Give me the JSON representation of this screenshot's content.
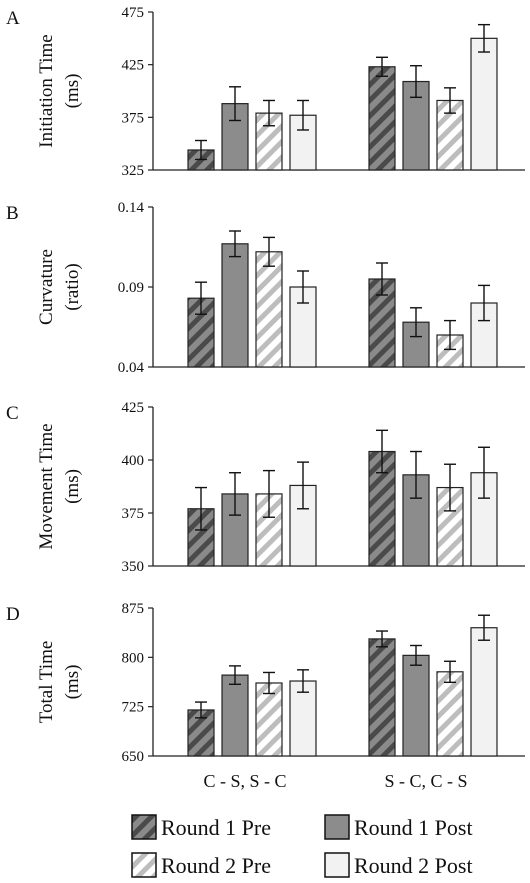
{
  "chart_data": {
    "type": "bar",
    "categories": [
      "C - S, S - C",
      "S - C, C - S"
    ],
    "series_names": [
      "Round 1 Pre",
      "Round 1 Post",
      "Round 2 Pre",
      "Round 2 Post"
    ],
    "series_colors": [
      "#7a7a7a",
      "#8c8c8c",
      "#d9d9d9",
      "#f2f2f2"
    ],
    "panels": [
      {
        "letter": "A",
        "ylabel_line1": "Initiation Time",
        "ylabel_line2": "(ms)",
        "ylim": [
          325,
          475
        ],
        "ticks": [
          "475",
          "425",
          "375",
          "325"
        ],
        "tick_values": [
          475,
          425,
          375,
          325
        ],
        "series": [
          {
            "name": "Round 1 Pre",
            "values": [
              344,
              423
            ],
            "errors": [
              9,
              9
            ]
          },
          {
            "name": "Round 1 Post",
            "values": [
              388,
              409
            ],
            "errors": [
              16,
              15
            ]
          },
          {
            "name": "Round 2 Pre",
            "values": [
              379,
              391
            ],
            "errors": [
              12,
              12
            ]
          },
          {
            "name": "Round 2 Post",
            "values": [
              377,
              450
            ],
            "errors": [
              14,
              13
            ]
          }
        ]
      },
      {
        "letter": "B",
        "ylabel_line1": "Curvature",
        "ylabel_line2": "(ratio)",
        "ylim": [
          0.04,
          0.14
        ],
        "ticks": [
          "0.14",
          "0.09",
          "0.04"
        ],
        "tick_values": [
          0.14,
          0.09,
          0.04
        ],
        "series": [
          {
            "name": "Round 1 Pre",
            "values": [
              0.083,
              0.095
            ],
            "errors": [
              0.01,
              0.01
            ]
          },
          {
            "name": "Round 1 Post",
            "values": [
              0.117,
              0.068
            ],
            "errors": [
              0.008,
              0.009
            ]
          },
          {
            "name": "Round 2 Pre",
            "values": [
              0.112,
              0.06
            ],
            "errors": [
              0.009,
              0.009
            ]
          },
          {
            "name": "Round 2 Post",
            "values": [
              0.09,
              0.08
            ],
            "errors": [
              0.01,
              0.011
            ]
          }
        ]
      },
      {
        "letter": "C",
        "ylabel_line1": "Movement Time",
        "ylabel_line2": "(ms)",
        "ylim": [
          350,
          425
        ],
        "ticks": [
          "425",
          "400",
          "375",
          "350"
        ],
        "tick_values": [
          425,
          400,
          375,
          350
        ],
        "series": [
          {
            "name": "Round 1 Pre",
            "values": [
              377,
              404
            ],
            "errors": [
              10,
              10
            ]
          },
          {
            "name": "Round 1 Post",
            "values": [
              384,
              393
            ],
            "errors": [
              10,
              11
            ]
          },
          {
            "name": "Round 2 Pre",
            "values": [
              384,
              387
            ],
            "errors": [
              11,
              11
            ]
          },
          {
            "name": "Round 2 Post",
            "values": [
              388,
              394
            ],
            "errors": [
              11,
              12
            ]
          }
        ]
      },
      {
        "letter": "D",
        "ylabel_line1": "Total Time",
        "ylabel_line2": "(ms)",
        "ylim": [
          650,
          875
        ],
        "ticks": [
          "875",
          "800",
          "725",
          "650"
        ],
        "tick_values": [
          875,
          800,
          725,
          650
        ],
        "series": [
          {
            "name": "Round 1 Pre",
            "values": [
              720,
              828
            ],
            "errors": [
              12,
              12
            ]
          },
          {
            "name": "Round 1 Post",
            "values": [
              773,
              803
            ],
            "errors": [
              14,
              15
            ]
          },
          {
            "name": "Round 2 Pre",
            "values": [
              761,
              778
            ],
            "errors": [
              16,
              16
            ]
          },
          {
            "name": "Round 2 Post",
            "values": [
              764,
              845
            ],
            "errors": [
              17,
              19
            ]
          }
        ]
      }
    ],
    "legend": {
      "placement": "bottom",
      "columns": 2
    },
    "grid": false
  }
}
